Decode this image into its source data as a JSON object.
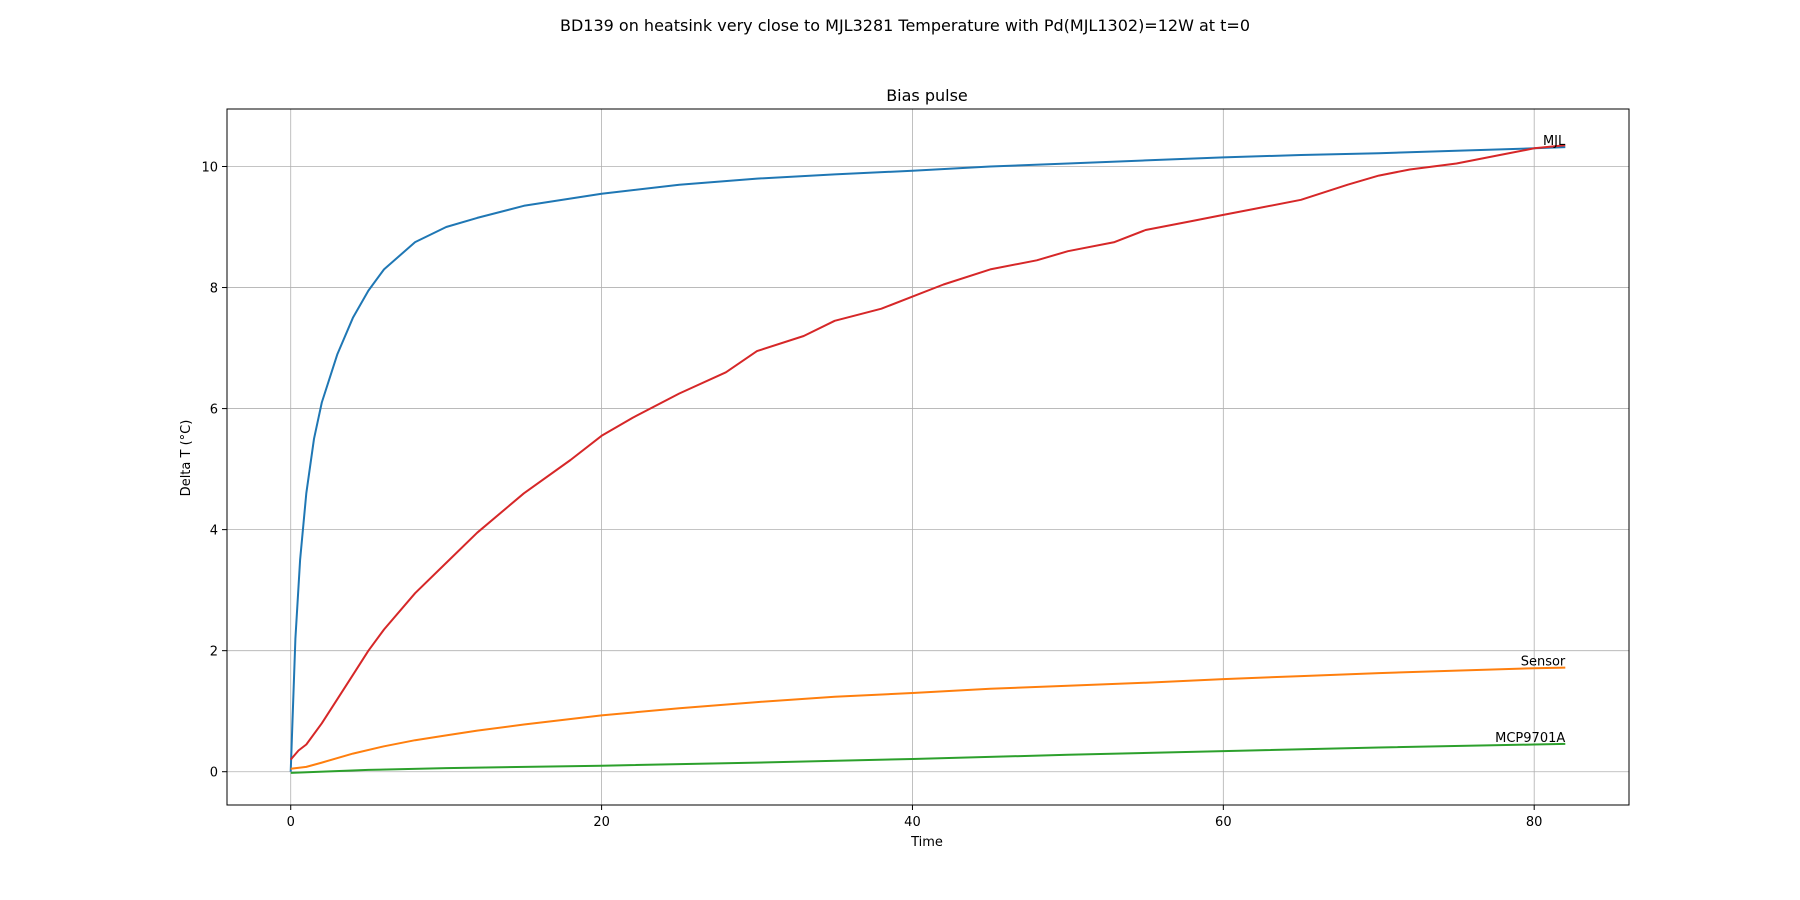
{
  "suptitle": "BD139 on heatsink very close to MJL3281 Temperature with Pd(MJL1302)=12W at t=0",
  "chart_data": {
    "type": "line",
    "title": "Bias pulse",
    "xlabel": "Time",
    "ylabel": "Delta T (°C)",
    "xlim": [
      -4.1,
      86.1
    ],
    "ylim": [
      -0.55,
      10.95
    ],
    "xticks": [
      0,
      20,
      40,
      60,
      80
    ],
    "yticks": [
      0,
      2,
      4,
      6,
      8,
      10
    ],
    "grid": true,
    "series": [
      {
        "color": "#1f77b4",
        "x": [
          0,
          0.3,
          0.6,
          1,
          1.5,
          2,
          3,
          4,
          5,
          6,
          8,
          10,
          12,
          15,
          20,
          25,
          30,
          35,
          40,
          45,
          50,
          55,
          60,
          65,
          70,
          75,
          80,
          82
        ],
        "y": [
          0,
          2.2,
          3.5,
          4.6,
          5.5,
          6.1,
          6.9,
          7.5,
          7.95,
          8.3,
          8.75,
          9.0,
          9.15,
          9.35,
          9.55,
          9.7,
          9.8,
          9.87,
          9.93,
          10.0,
          10.05,
          10.1,
          10.15,
          10.19,
          10.22,
          10.26,
          10.3,
          10.32
        ]
      },
      {
        "color": "#ff7f0e",
        "x": [
          0,
          1,
          2,
          4,
          6,
          8,
          10,
          12,
          15,
          20,
          25,
          30,
          35,
          40,
          45,
          50,
          55,
          60,
          65,
          70,
          75,
          80,
          82
        ],
        "y": [
          0.05,
          0.08,
          0.15,
          0.3,
          0.42,
          0.52,
          0.6,
          0.68,
          0.78,
          0.93,
          1.05,
          1.15,
          1.24,
          1.3,
          1.37,
          1.42,
          1.47,
          1.53,
          1.58,
          1.63,
          1.67,
          1.71,
          1.72
        ]
      },
      {
        "color": "#2ca02c",
        "x": [
          0,
          5,
          10,
          20,
          30,
          40,
          50,
          60,
          70,
          80,
          82
        ],
        "y": [
          -0.02,
          0.03,
          0.06,
          0.1,
          0.15,
          0.21,
          0.28,
          0.34,
          0.4,
          0.45,
          0.46
        ]
      },
      {
        "color": "#d62728",
        "x": [
          0,
          0.5,
          1,
          2,
          3,
          4,
          5,
          6,
          8,
          10,
          12,
          15,
          18,
          20,
          22,
          25,
          28,
          30,
          33,
          35,
          38,
          40,
          42,
          45,
          48,
          50,
          53,
          55,
          58,
          60,
          62,
          65,
          68,
          70,
          72,
          75,
          78,
          80,
          82
        ],
        "y": [
          0.2,
          0.35,
          0.45,
          0.8,
          1.2,
          1.6,
          2.0,
          2.35,
          2.95,
          3.45,
          3.95,
          4.6,
          5.15,
          5.55,
          5.85,
          6.25,
          6.6,
          6.95,
          7.2,
          7.45,
          7.65,
          7.85,
          8.05,
          8.3,
          8.45,
          8.6,
          8.75,
          8.95,
          9.1,
          9.2,
          9.3,
          9.45,
          9.7,
          9.85,
          9.95,
          10.05,
          10.2,
          10.3,
          10.35
        ]
      }
    ],
    "annotations": [
      {
        "text": "MJL",
        "x": 82,
        "y": 10.32
      },
      {
        "text": "Sensor",
        "x": 82,
        "y": 1.72
      },
      {
        "text": "MCP9701A",
        "x": 82,
        "y": 0.46
      }
    ]
  }
}
